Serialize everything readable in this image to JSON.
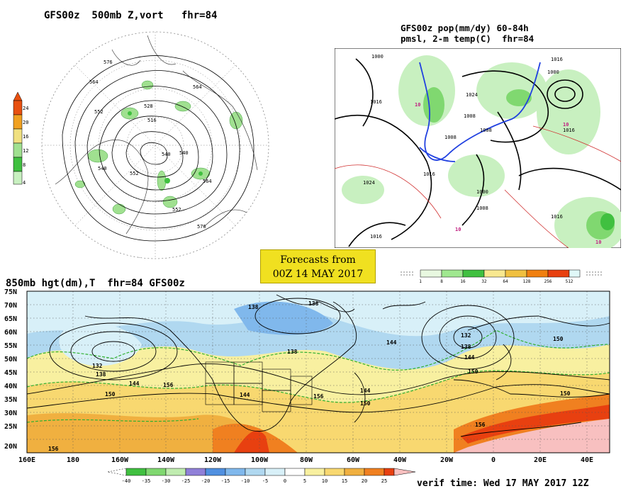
{
  "panels": {
    "polar": {
      "title": "GFS00z  500mb Z,vort   fhr=84",
      "colorbar": {
        "ticks": [
          "24",
          "20",
          "16",
          "12",
          "8",
          "4"
        ],
        "colors": [
          "#e85010",
          "#f0a020",
          "#f0e080",
          "#a0e090",
          "#40c040",
          "#c8f0c0"
        ]
      },
      "contour_labels": [
        "576",
        "564",
        "552",
        "540",
        "528",
        "516",
        "540",
        "552",
        "564",
        "576",
        "588",
        "564",
        "552",
        "540"
      ]
    },
    "precip": {
      "title_line1": "GFS00z pop(mm/dy) 60-84h",
      "title_line2": "pmsl, 2-m temp(C)  fhr=84",
      "isobar_labels": [
        "1000",
        "1016",
        "1024",
        "1008",
        "1016",
        "1016",
        "1000",
        "1008",
        "1008",
        "1024",
        "1016",
        "1016",
        "1008",
        "1016",
        "1000"
      ],
      "temp_labels": [
        "10",
        "10",
        "10",
        "10"
      ],
      "colorbar": {
        "ticks": [
          "1",
          "8",
          "16",
          "32",
          "64",
          "128",
          "256",
          "512"
        ],
        "colors": [
          "#e8f8e0",
          "#a0e890",
          "#40c040",
          "#f8e890",
          "#f0c040",
          "#f08010",
          "#e84010",
          "#e0f8f8"
        ]
      }
    },
    "forecast_box": {
      "line1": "Forecasts from",
      "line2": "00Z 14 MAY 2017"
    },
    "map850": {
      "title": "850mb hgt(dm),T  fhr=84 GFS00z",
      "lat_labels": [
        "75N",
        "70N",
        "65N",
        "60N",
        "55N",
        "50N",
        "45N",
        "40N",
        "35N",
        "30N",
        "25N",
        "20N"
      ],
      "lon_labels": [
        "160E",
        "180",
        "160W",
        "140W",
        "120W",
        "100W",
        "80W",
        "60W",
        "40W",
        "20W",
        "0",
        "20E",
        "40E"
      ],
      "height_labels": [
        "132",
        "138",
        "144",
        "150",
        "156",
        "144",
        "138",
        "144",
        "150",
        "156",
        "132",
        "138",
        "144",
        "150",
        "138",
        "150",
        "156",
        "156",
        "150",
        "138",
        "144"
      ],
      "colorbar": {
        "ticks": [
          "-40",
          "-35",
          "-30",
          "-25",
          "-20",
          "-15",
          "-10",
          "-5",
          "0",
          "5",
          "10",
          "15",
          "20",
          "25"
        ],
        "colors": [
          "#40c040",
          "#80d870",
          "#c0ecb0",
          "#9080d8",
          "#5090e0",
          "#80b8ec",
          "#b0d8f0",
          "#d8f0f8",
          "#ffffff",
          "#f8f0a0",
          "#f8d870",
          "#f0b040",
          "#f08020",
          "#e84010",
          "#f8c0c0"
        ]
      }
    }
  },
  "verif_time": "verif time: Wed 17 MAY 2017 12Z"
}
